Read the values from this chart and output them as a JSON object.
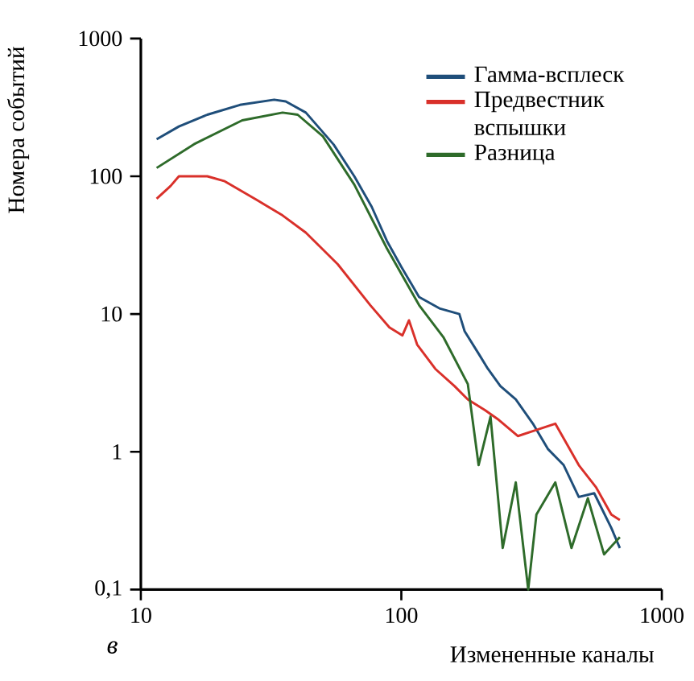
{
  "chart_data": {
    "type": "line",
    "xlabel": "Измененные каналы",
    "ylabel": "Номера событий",
    "annotations": [
      "в"
    ],
    "log": "xy",
    "xlim": [
      10,
      1000
    ],
    "ylim": [
      0.1,
      1000
    ],
    "xticks": [
      10,
      100,
      1000
    ],
    "yticks": [
      {
        "value": 0.1,
        "label": "0,1"
      },
      1,
      10,
      100,
      1000
    ],
    "legend": "top right",
    "grid": false,
    "marker": "none",
    "line_style": "solid",
    "series": [
      {
        "name": "Гамма-всплеск",
        "color": "#1f4e7a",
        "x": [
          11.5,
          14,
          18,
          24,
          32.5,
          36,
          43,
          55,
          66,
          77,
          88,
          100,
          117,
          140,
          167,
          175,
          200,
          215,
          240,
          275,
          320,
          365,
          420,
          480,
          550,
          640,
          690
        ],
        "values": [
          186,
          230,
          280,
          330,
          360,
          350,
          290,
          170,
          100,
          60,
          34,
          22,
          13.3,
          11,
          10,
          7.5,
          5,
          4,
          3,
          2.4,
          1.6,
          1.05,
          0.8,
          0.47,
          0.5,
          0.28,
          0.2
        ]
      },
      {
        "name": "Предвестник вспышки",
        "color": "#d9302a",
        "x": [
          11.5,
          13,
          14,
          18,
          21,
          28,
          35,
          43,
          57,
          76,
          90,
          101,
          107,
          115,
          135,
          160,
          180,
          210,
          237,
          280,
          316,
          390,
          480,
          560,
          640,
          690
        ],
        "values": [
          68.8,
          85,
          100,
          100,
          92,
          67,
          52,
          39,
          23,
          11.6,
          8,
          7,
          9,
          6,
          4,
          3,
          2.4,
          2,
          1.7,
          1.3,
          1.4,
          1.6,
          0.8,
          0.55,
          0.35,
          0.32
        ]
      },
      {
        "name": "Разница",
        "color": "#2e6b2a",
        "x": [
          11.5,
          16,
          24.5,
          35,
          40,
          50,
          66,
          88,
          117,
          145,
          180,
          198,
          220,
          245,
          275,
          307,
          330,
          390,
          450,
          520,
          600,
          690
        ],
        "values": [
          115,
          171,
          255,
          290,
          280,
          195,
          87,
          30,
          11.6,
          6.8,
          3.1,
          0.8,
          1.8,
          0.2,
          0.6,
          0.1,
          0.35,
          0.6,
          0.2,
          0.46,
          0.18,
          0.24
        ]
      }
    ]
  }
}
